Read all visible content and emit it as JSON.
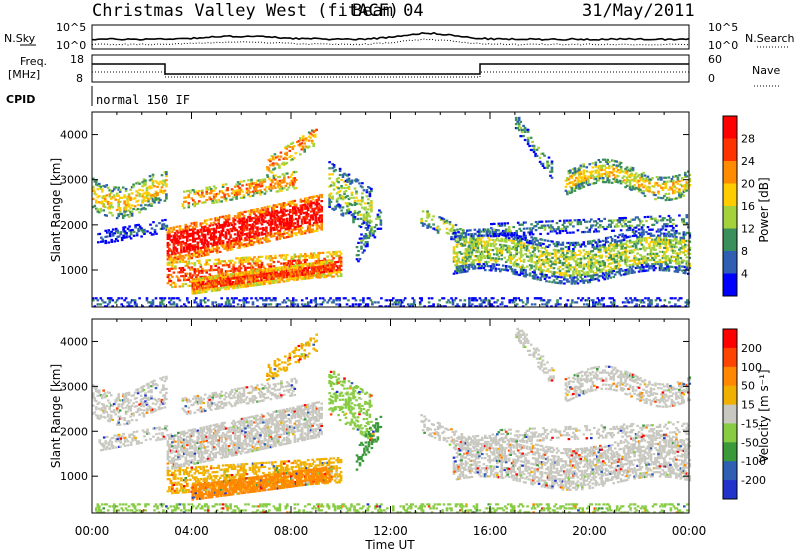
{
  "header": {
    "title": "Christmas Valley West (fitACF)",
    "beam": "Beam 04",
    "date": "31/May/2011"
  },
  "noise_panel": {
    "left_label": "N.Sky",
    "right_label": "N.Search",
    "left_ticks": [
      "10^5",
      "10^0"
    ],
    "right_ticks": [
      "10^5",
      "10^0"
    ]
  },
  "freq_panel": {
    "left_label_1": "Freq.",
    "left_label_2": "[MHz]",
    "right_label": "Nave",
    "left_ticks": [
      "18",
      "8"
    ],
    "right_ticks": [
      "60",
      "0"
    ]
  },
  "cpid": {
    "label": "CPID",
    "mode": "normal 150 IF"
  },
  "colors": {
    "power_scale": [
      "#0000ff",
      "#2e5fb3",
      "#3a8f5a",
      "#a4d23c",
      "#ffcc00",
      "#ff8c00",
      "#ff3300",
      "#ff0000"
    ],
    "velocity_scale": [
      "#2233cc",
      "#2e5fb3",
      "#3a9a3a",
      "#88cc44",
      "#c8c8c0",
      "#f0b000",
      "#ff8800",
      "#ff4400",
      "#ff0000"
    ]
  },
  "chart_data": [
    {
      "type": "heatmap",
      "title": "Power",
      "ylabel": "Slant Range [km]",
      "xlabel": "",
      "ylim": [
        180,
        4500
      ],
      "xlim": [
        "00:00",
        "24:00"
      ],
      "yticks": [
        "1000",
        "2000",
        "3000",
        "4000"
      ],
      "colorbar": {
        "label": "Power [dB]",
        "ticks": [
          "28",
          "24",
          "20",
          "16",
          "12",
          "8",
          "4"
        ]
      }
    },
    {
      "type": "heatmap",
      "title": "Velocity",
      "ylabel": "Slant Range [km]",
      "xlabel": "Time UT",
      "ylim": [
        180,
        4500
      ],
      "xlim": [
        "00:00",
        "24:00"
      ],
      "xticks": [
        "00:00",
        "04:00",
        "08:00",
        "12:00",
        "16:00",
        "20:00",
        "00:00"
      ],
      "yticks": [
        "1000",
        "2000",
        "3000",
        "4000"
      ],
      "colorbar": {
        "label": "Velocity [m s⁻¹]",
        "ticks": [
          "200",
          "100",
          "50",
          "15",
          "-15",
          "-50",
          "-100",
          "-200"
        ]
      }
    }
  ]
}
